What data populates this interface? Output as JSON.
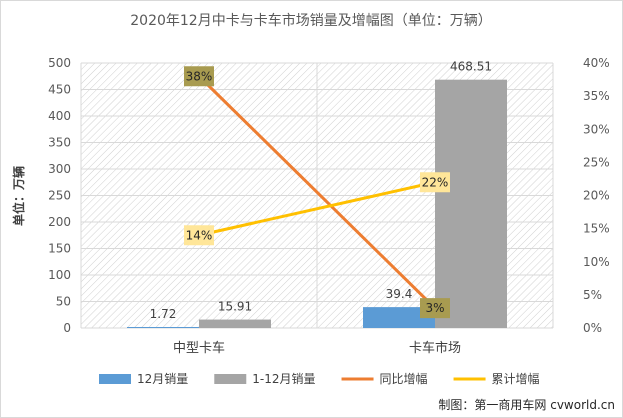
{
  "chart_data": {
    "type": "bar",
    "title": "2020年12月中卡与卡车市场销量及增幅图（单位：万辆）",
    "ylabel": "单位：万辆",
    "categories": [
      "中型卡车",
      "卡车市场"
    ],
    "ylim": [
      0,
      500
    ],
    "yticks": [
      "0",
      "50",
      "100",
      "150",
      "200",
      "250",
      "300",
      "350",
      "400",
      "450",
      "500"
    ],
    "y2lim": [
      0,
      40
    ],
    "y2ticks": [
      "0%",
      "5%",
      "10%",
      "15%",
      "20%",
      "25%",
      "30%",
      "35%",
      "40%"
    ],
    "grid": true,
    "legend_position": "bottom",
    "series": [
      {
        "name": "12月销量",
        "type": "bar",
        "axis": "left",
        "color": "#5b9bd5",
        "values": [
          1.72,
          39.4
        ],
        "labels": [
          "1.72",
          "39.4"
        ]
      },
      {
        "name": "1-12月销量",
        "type": "bar",
        "axis": "left",
        "color": "#a5a5a5",
        "values": [
          15.91,
          468.51
        ],
        "labels": [
          "15.91",
          "468.51"
        ]
      },
      {
        "name": "同比增幅",
        "type": "line",
        "axis": "right",
        "color": "#ed7d31",
        "values": [
          38,
          3
        ],
        "labels": [
          "38%",
          "3%"
        ],
        "label_bg": "#a89b50"
      },
      {
        "name": "累计增幅",
        "type": "line",
        "axis": "right",
        "color": "#ffc000",
        "values": [
          14,
          22
        ],
        "labels": [
          "14%",
          "22%"
        ],
        "label_bg": "#ffe699"
      }
    ],
    "credit": "制图：第一商用车网 cvworld.cn"
  }
}
